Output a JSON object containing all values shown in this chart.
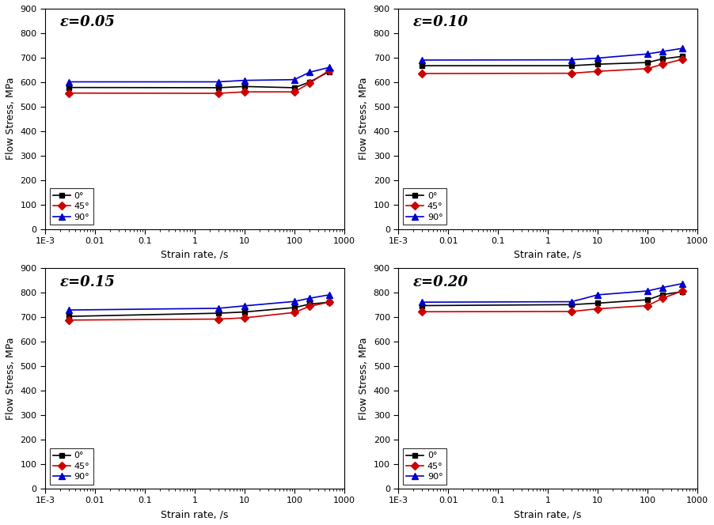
{
  "subplots": [
    {
      "title": "ε=0.05",
      "strain_rates": [
        0.003,
        3,
        10,
        100,
        200,
        500
      ],
      "series": [
        {
          "label": "0°",
          "color": "#000000",
          "marker": "s",
          "values": [
            578,
            577,
            582,
            577,
            600,
            643
          ]
        },
        {
          "label": "45°",
          "color": "#cc0000",
          "marker": "D",
          "values": [
            555,
            554,
            560,
            560,
            595,
            648
          ]
        },
        {
          "label": "90°",
          "color": "#0000cc",
          "marker": "^",
          "values": [
            601,
            601,
            607,
            610,
            640,
            660
          ]
        }
      ]
    },
    {
      "title": "ε=0.10",
      "strain_rates": [
        0.003,
        3,
        10,
        100,
        200,
        500
      ],
      "series": [
        {
          "label": "0°",
          "color": "#000000",
          "marker": "s",
          "values": [
            667,
            667,
            673,
            680,
            695,
            705
          ]
        },
        {
          "label": "45°",
          "color": "#cc0000",
          "marker": "D",
          "values": [
            635,
            636,
            644,
            655,
            673,
            693
          ]
        },
        {
          "label": "90°",
          "color": "#0000cc",
          "marker": "^",
          "values": [
            690,
            691,
            698,
            715,
            725,
            738
          ]
        }
      ]
    },
    {
      "title": "ε=0.15",
      "strain_rates": [
        0.003,
        3,
        10,
        100,
        200,
        500
      ],
      "series": [
        {
          "label": "0°",
          "color": "#000000",
          "marker": "s",
          "values": [
            704,
            717,
            722,
            740,
            754,
            762
          ]
        },
        {
          "label": "45°",
          "color": "#cc0000",
          "marker": "D",
          "values": [
            689,
            693,
            698,
            720,
            745,
            762
          ]
        },
        {
          "label": "90°",
          "color": "#0000cc",
          "marker": "^",
          "values": [
            730,
            737,
            747,
            765,
            778,
            792
          ]
        }
      ]
    },
    {
      "title": "ε=0.20",
      "strain_rates": [
        0.003,
        3,
        10,
        100,
        200,
        500
      ],
      "series": [
        {
          "label": "0°",
          "color": "#000000",
          "marker": "s",
          "values": [
            748,
            752,
            758,
            772,
            793,
            805
          ]
        },
        {
          "label": "45°",
          "color": "#cc0000",
          "marker": "D",
          "values": [
            723,
            724,
            735,
            748,
            778,
            808
          ]
        },
        {
          "label": "90°",
          "color": "#0000cc",
          "marker": "^",
          "values": [
            762,
            764,
            792,
            808,
            822,
            838
          ]
        }
      ]
    }
  ],
  "ylabel": "Flow Stress, MPa",
  "xlabel": "Strain rate, /s",
  "ylim": [
    0,
    900
  ],
  "yticks": [
    0,
    100,
    200,
    300,
    400,
    500,
    600,
    700,
    800,
    900
  ],
  "background_color": "#ffffff",
  "title_fontsize": 13,
  "label_fontsize": 9,
  "tick_fontsize": 8,
  "legend_fontsize": 8
}
